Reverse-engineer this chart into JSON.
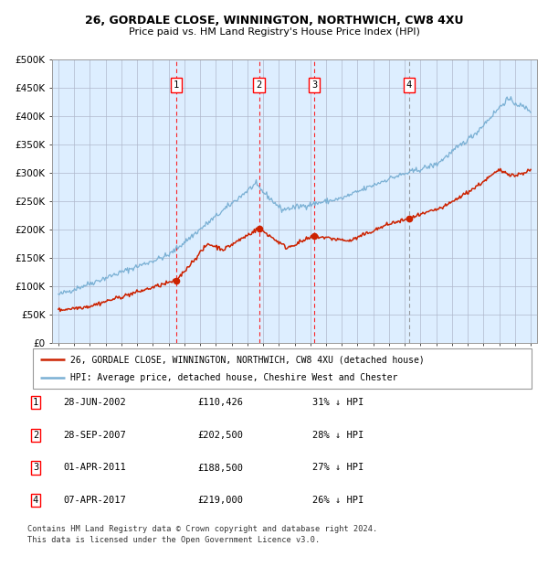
{
  "title1": "26, GORDALE CLOSE, WINNINGTON, NORTHWICH, CW8 4XU",
  "title2": "Price paid vs. HM Land Registry's House Price Index (HPI)",
  "ylim": [
    0,
    500000
  ],
  "yticks": [
    0,
    50000,
    100000,
    150000,
    200000,
    250000,
    300000,
    350000,
    400000,
    450000,
    500000
  ],
  "ytick_labels": [
    "£0",
    "£50K",
    "£100K",
    "£150K",
    "£200K",
    "£250K",
    "£300K",
    "£350K",
    "£400K",
    "£450K",
    "£500K"
  ],
  "hpi_color": "#7ab0d4",
  "price_color": "#cc2200",
  "bg_color": "#ddeeff",
  "grid_color": "#b0b8cc",
  "sales": [
    {
      "label": "1",
      "date_x": 2002.49,
      "price": 110426,
      "date_str": "28-JUN-2002",
      "pct": "31%"
    },
    {
      "label": "2",
      "date_x": 2007.74,
      "price": 202500,
      "date_str": "28-SEP-2007",
      "pct": "28%"
    },
    {
      "label": "3",
      "date_x": 2011.25,
      "price": 188500,
      "date_str": "01-APR-2011",
      "pct": "27%"
    },
    {
      "label": "4",
      "date_x": 2017.27,
      "price": 219000,
      "date_str": "07-APR-2017",
      "pct": "26%"
    }
  ],
  "legend_line1": "26, GORDALE CLOSE, WINNINGTON, NORTHWICH, CW8 4XU (detached house)",
  "legend_line2": "HPI: Average price, detached house, Cheshire West and Chester",
  "footer1": "Contains HM Land Registry data © Crown copyright and database right 2024.",
  "footer2": "This data is licensed under the Open Government Licence v3.0.",
  "xlim_left": 1994.6,
  "xlim_right": 2025.4,
  "xtick_start": 1995,
  "xtick_end": 2025
}
